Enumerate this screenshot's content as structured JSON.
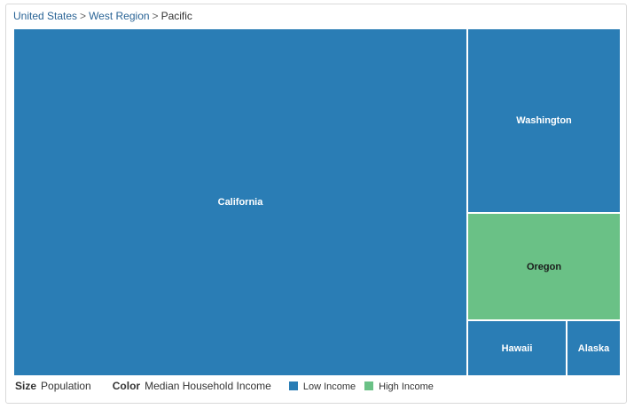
{
  "breadcrumb": {
    "items": [
      "United States",
      "West Region"
    ],
    "current": "Pacific",
    "separator": ">"
  },
  "legend": {
    "size_label": "Size",
    "size_value": "Population",
    "color_label": "Color",
    "color_value": "Median Household Income",
    "entries": [
      {
        "label": "Low Income",
        "color": "#2a7db5"
      },
      {
        "label": "High Income",
        "color": "#6ac186"
      }
    ]
  },
  "chart_data": {
    "type": "treemap",
    "size_metric": "Population",
    "color_metric": "Median Household Income",
    "items": [
      {
        "name": "California",
        "category": "Low Income",
        "color": "#2a7db5",
        "label_color": "#ffffff"
      },
      {
        "name": "Washington",
        "category": "Low Income",
        "color": "#2a7db5",
        "label_color": "#ffffff"
      },
      {
        "name": "Oregon",
        "category": "High Income",
        "color": "#6ac186",
        "label_color": "#1a1a1a"
      },
      {
        "name": "Hawaii",
        "category": "Low Income",
        "color": "#2a7db5",
        "label_color": "#ffffff"
      },
      {
        "name": "Alaska",
        "category": "Low Income",
        "color": "#2a7db5",
        "label_color": "#ffffff"
      }
    ]
  }
}
